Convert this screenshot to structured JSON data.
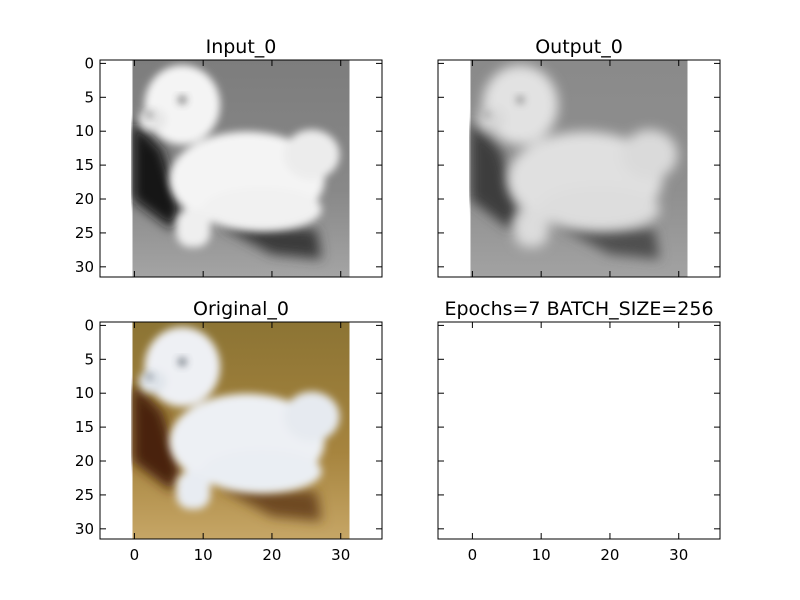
{
  "chart_data": [
    {
      "type": "image",
      "title": "Input_0",
      "xlim": [
        -5,
        36
      ],
      "ylim": [
        31.5,
        -0.5
      ],
      "image_extent": [
        -0.5,
        31.5
      ],
      "xticks": [
        0,
        10,
        20,
        30
      ],
      "yticks": [
        0,
        5,
        10,
        15,
        20,
        25,
        30
      ],
      "show_xticklabels": false,
      "show_yticklabels": true,
      "image_style": "grayscale",
      "has_image": true
    },
    {
      "type": "image",
      "title": "Output_0",
      "xlim": [
        -5,
        36
      ],
      "ylim": [
        31.5,
        -0.5
      ],
      "image_extent": [
        -0.5,
        31.5
      ],
      "xticks": [
        0,
        10,
        20,
        30
      ],
      "yticks": [
        0,
        5,
        10,
        15,
        20,
        25,
        30
      ],
      "show_xticklabels": false,
      "show_yticklabels": false,
      "image_style": "grayscale-soft",
      "has_image": true
    },
    {
      "type": "image",
      "title": "Original_0",
      "xlim": [
        -5,
        36
      ],
      "ylim": [
        31.5,
        -0.5
      ],
      "image_extent": [
        -0.5,
        31.5
      ],
      "xticks": [
        0,
        10,
        20,
        30
      ],
      "yticks": [
        0,
        5,
        10,
        15,
        20,
        25,
        30
      ],
      "show_xticklabels": true,
      "show_yticklabels": true,
      "image_style": "color",
      "has_image": true
    },
    {
      "type": "image",
      "title": "Epochs=7 BATCH_SIZE=256",
      "xlim": [
        -5,
        36
      ],
      "ylim": [
        31.5,
        -0.5
      ],
      "xticks": [
        0,
        10,
        20,
        30
      ],
      "yticks": [
        0,
        5,
        10,
        15,
        20,
        25,
        30
      ],
      "show_xticklabels": true,
      "show_yticklabels": false,
      "image_style": "none",
      "has_image": false
    }
  ]
}
